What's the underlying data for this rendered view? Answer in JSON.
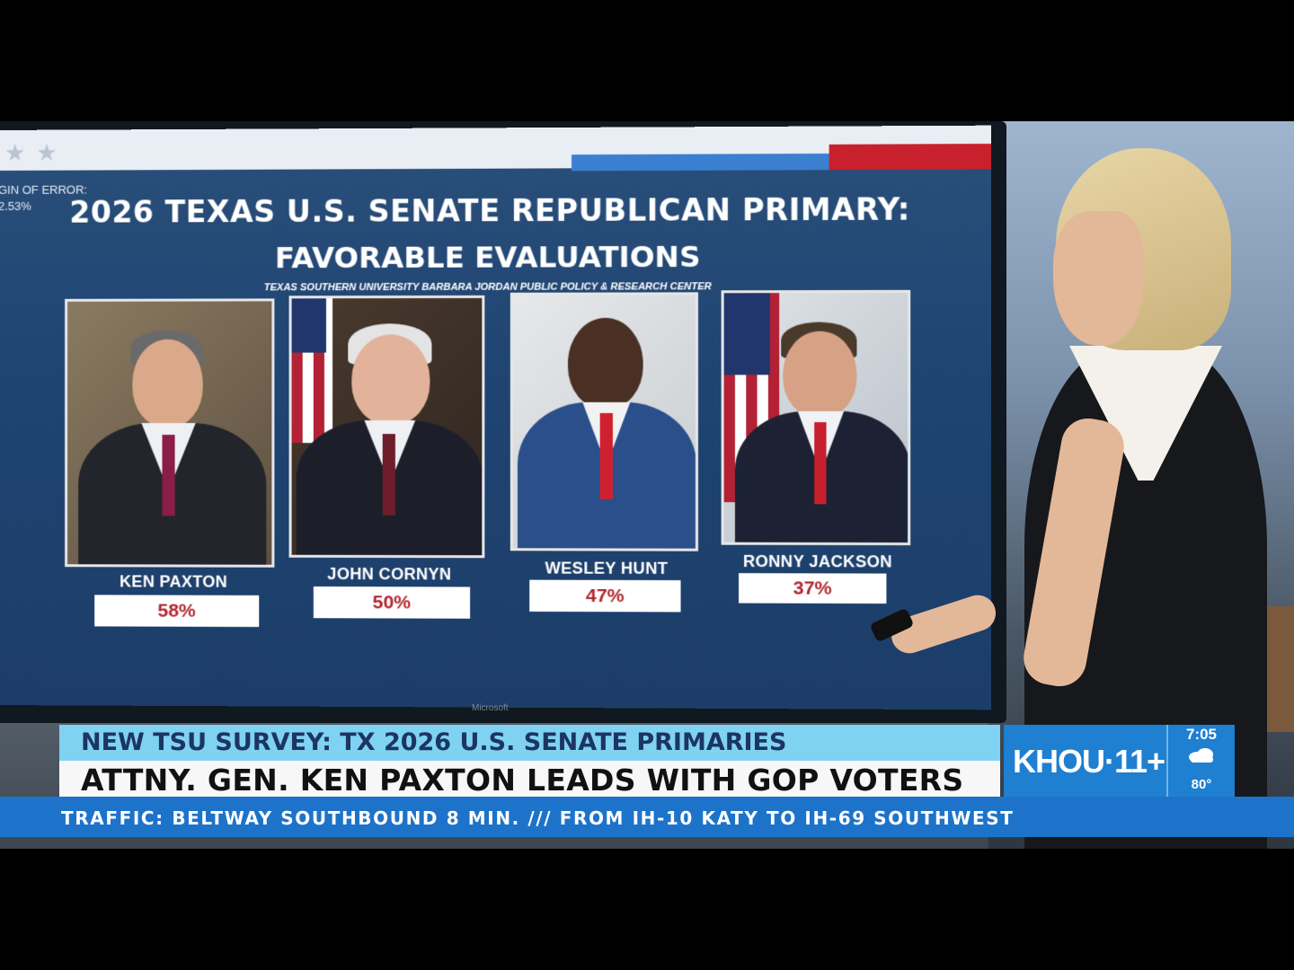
{
  "graphic": {
    "margin_label": "GIN OF ERROR:",
    "margin_value": "2.53%",
    "title_line1": "2026 TEXAS U.S. SENATE REPUBLICAN PRIMARY:",
    "title_line2": "FAVORABLE EVALUATIONS",
    "source": "TEXAS SOUTHERN UNIVERSITY BARBARA JORDAN PUBLIC POLICY & RESEARCH CENTER",
    "monitor_brand": "Microsoft"
  },
  "candidates": [
    {
      "name": "KEN PAXTON",
      "favorable": "58%"
    },
    {
      "name": "JOHN CORNYN",
      "favorable": "50%"
    },
    {
      "name": "WESLEY HUNT",
      "favorable": "47%"
    },
    {
      "name": "RONNY JACKSON",
      "favorable": "37%"
    }
  ],
  "lower_third": {
    "headline_top": "NEW TSU SURVEY: TX 2026 U.S. SENATE PRIMARIES",
    "headline_main": "ATTNY. GEN. KEN PAXTON LEADS WITH GOP VOTERS"
  },
  "station": {
    "logo": "KHOU·11+",
    "time": "7:05",
    "weather_icon": "cloudy-icon",
    "temperature": "80°"
  },
  "ticker": {
    "text": "TRAFFIC: BELTWAY SOUTHBOUND 8 MIN.  ///  FROM IH-10 KATY TO IH-69 SOUTHWEST"
  },
  "colors": {
    "screen_blue": "#1f4472",
    "percent_red": "#b3262e",
    "lower_third_light_blue": "#7fd2f2",
    "station_blue": "#1f7fd0",
    "ticker_blue": "#1d73c9"
  }
}
